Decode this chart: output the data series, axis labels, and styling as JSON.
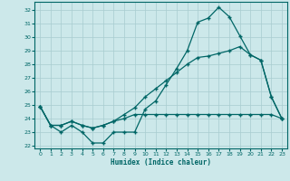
{
  "xlabel": "Humidex (Indice chaleur)",
  "bg_color": "#cce8ea",
  "grid_color": "#a8cccf",
  "line_color": "#006666",
  "xlim": [
    -0.5,
    23.5
  ],
  "ylim": [
    21.8,
    32.6
  ],
  "yticks": [
    22,
    23,
    24,
    25,
    26,
    27,
    28,
    29,
    30,
    31,
    32
  ],
  "xticks": [
    0,
    1,
    2,
    3,
    4,
    5,
    6,
    7,
    8,
    9,
    10,
    11,
    12,
    13,
    14,
    15,
    16,
    17,
    18,
    19,
    20,
    21,
    22,
    23
  ],
  "line1_x": [
    0,
    1,
    2,
    3,
    4,
    5,
    6,
    7,
    8,
    9,
    10,
    11,
    12,
    13,
    14,
    15,
    16,
    17,
    18,
    19,
    20,
    21,
    22,
    23
  ],
  "line1_y": [
    24.9,
    23.5,
    23.0,
    23.5,
    23.0,
    22.2,
    22.2,
    23.0,
    23.0,
    23.0,
    24.7,
    25.3,
    26.5,
    27.7,
    29.0,
    31.1,
    31.4,
    32.2,
    31.5,
    30.1,
    28.7,
    28.3,
    25.6,
    24.0
  ],
  "line2_x": [
    0,
    1,
    2,
    3,
    4,
    5,
    6,
    7,
    8,
    9,
    10,
    11,
    12,
    13,
    14,
    15,
    16,
    17,
    18,
    19,
    20,
    21,
    22,
    23
  ],
  "line2_y": [
    24.9,
    23.5,
    23.5,
    23.8,
    23.5,
    23.3,
    23.5,
    23.8,
    24.3,
    24.8,
    25.6,
    26.2,
    26.8,
    27.4,
    28.0,
    28.5,
    28.6,
    28.8,
    29.0,
    29.3,
    28.7,
    28.3,
    25.6,
    24.0
  ],
  "line3_x": [
    0,
    1,
    2,
    3,
    4,
    5,
    6,
    7,
    8,
    9,
    10,
    11,
    12,
    13,
    14,
    15,
    16,
    17,
    18,
    19,
    20,
    21,
    22,
    23
  ],
  "line3_y": [
    24.9,
    23.5,
    23.5,
    23.8,
    23.5,
    23.3,
    23.5,
    23.8,
    24.0,
    24.3,
    24.3,
    24.3,
    24.3,
    24.3,
    24.3,
    24.3,
    24.3,
    24.3,
    24.3,
    24.3,
    24.3,
    24.3,
    24.3,
    24.0
  ]
}
